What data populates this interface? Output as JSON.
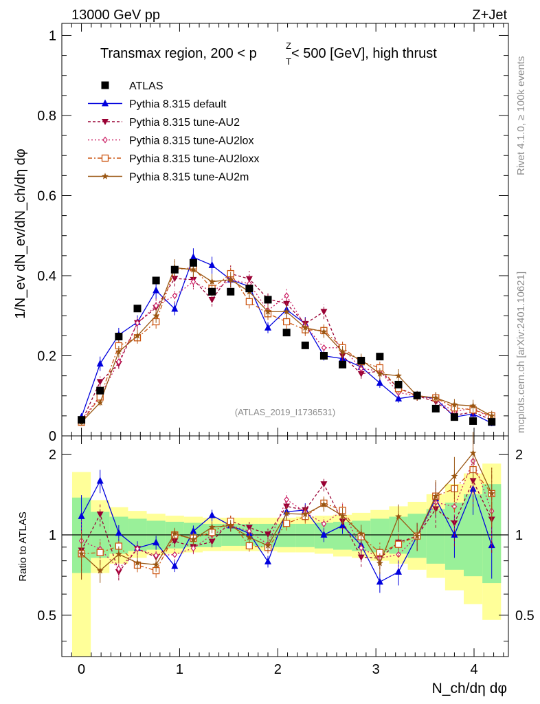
{
  "header": {
    "energy_label": "13000 GeV pp",
    "process_label": "Z+Jet",
    "rivet_label": "Rivet 4.1.0, ≥ 100k events",
    "site_label": "mcplots.cern.ch [arXiv:2401.10621]"
  },
  "chart_data": {
    "type": "line",
    "title_main": "Transmax region, 200 < p",
    "title_sup": "Z",
    "title_sub": "T",
    "title_tail": " < 500 [GeV], high thrust",
    "analysis_id": "(ATLAS_2019_I1736531)",
    "ylabel_main": "1/N_ev dN_ev/dN_ch/dη dφ",
    "ylabel_ratio": "Ratio to ATLAS",
    "xlabel": "N_ch/dη dφ",
    "xlim": [
      -0.2,
      4.35
    ],
    "ylim_main": [
      0,
      1.03
    ],
    "ylim_ratio": [
      0.35,
      2.35
    ],
    "x_ticks": [
      "0",
      "1",
      "2",
      "3",
      "4"
    ],
    "y_ticks_main": [
      "0",
      "0.2",
      "0.4",
      "0.6",
      "0.8",
      "1"
    ],
    "y_ticks_ratio": [
      "0.5",
      "1",
      "2"
    ],
    "x": [
      0.0,
      0.19,
      0.38,
      0.57,
      0.76,
      0.95,
      1.14,
      1.33,
      1.52,
      1.71,
      1.9,
      2.09,
      2.28,
      2.47,
      2.66,
      2.85,
      3.04,
      3.23,
      3.42,
      3.61,
      3.8,
      3.99,
      4.18
    ],
    "data": {
      "name": "ATLAS",
      "values": [
        0.04,
        0.113,
        0.248,
        0.318,
        0.388,
        0.415,
        0.432,
        0.36,
        0.36,
        0.368,
        0.34,
        0.258,
        0.226,
        0.2,
        0.178,
        0.188,
        0.198,
        0.128,
        0.101,
        0.068,
        0.047,
        0.037,
        0.035
      ]
    },
    "band_ratio": {
      "green_lo": [
        0.72,
        0.82,
        0.85,
        0.87,
        0.88,
        0.89,
        0.9,
        0.9,
        0.91,
        0.91,
        0.9,
        0.9,
        0.9,
        0.89,
        0.88,
        0.87,
        0.86,
        0.85,
        0.82,
        0.78,
        0.74,
        0.7,
        0.66
      ],
      "green_hi": [
        1.38,
        1.22,
        1.17,
        1.15,
        1.13,
        1.12,
        1.11,
        1.1,
        1.1,
        1.1,
        1.1,
        1.1,
        1.1,
        1.11,
        1.12,
        1.13,
        1.15,
        1.17,
        1.2,
        1.25,
        1.32,
        1.42,
        1.55
      ],
      "yellow_lo": [
        0.35,
        0.72,
        0.78,
        0.82,
        0.84,
        0.85,
        0.86,
        0.87,
        0.87,
        0.87,
        0.87,
        0.86,
        0.86,
        0.85,
        0.83,
        0.82,
        0.8,
        0.78,
        0.74,
        0.69,
        0.62,
        0.55,
        0.48
      ],
      "yellow_hi": [
        1.72,
        1.35,
        1.27,
        1.23,
        1.2,
        1.18,
        1.17,
        1.16,
        1.16,
        1.16,
        1.16,
        1.16,
        1.17,
        1.18,
        1.19,
        1.21,
        1.24,
        1.28,
        1.33,
        1.42,
        1.55,
        1.7,
        1.85
      ]
    },
    "series": [
      {
        "name": "Pythia 8.315 default",
        "color": "#0000dd",
        "dash": "",
        "marker": "triangle-up",
        "values": [
          0.047,
          0.18,
          0.252,
          0.284,
          0.363,
          0.317,
          0.446,
          0.426,
          0.39,
          0.373,
          0.27,
          0.315,
          0.28,
          0.2,
          0.193,
          0.172,
          0.132,
          0.093,
          0.1,
          0.093,
          0.047,
          0.055,
          0.032
        ]
      },
      {
        "name": "Pythia 8.315 tune-AU2",
        "color": "#990033",
        "dash": "4,3",
        "marker": "triangle-down",
        "values": [
          0.035,
          0.135,
          0.18,
          0.282,
          0.32,
          0.393,
          0.39,
          0.34,
          0.405,
          0.392,
          0.342,
          0.33,
          0.28,
          0.31,
          0.2,
          0.155,
          0.162,
          0.12,
          0.1,
          0.085,
          0.052,
          0.059,
          0.04
        ]
      },
      {
        "name": "Pythia 8.315 tune-AU2lox",
        "color": "#cc2266",
        "dash": "2,3",
        "marker": "diamond",
        "values": [
          0.038,
          0.1,
          0.185,
          0.282,
          0.325,
          0.35,
          0.385,
          0.36,
          0.39,
          0.38,
          0.313,
          0.35,
          0.275,
          0.22,
          0.22,
          0.168,
          0.162,
          0.108,
          0.1,
          0.09,
          0.06,
          0.07,
          0.043
        ]
      },
      {
        "name": "Pythia 8.315 tune-AU2loxx",
        "color": "#cc5511",
        "dash": "6,3,2,3",
        "marker": "square-open",
        "values": [
          0.034,
          0.097,
          0.225,
          0.245,
          0.285,
          0.415,
          0.42,
          0.368,
          0.405,
          0.335,
          0.305,
          0.285,
          0.265,
          0.263,
          0.22,
          0.185,
          0.17,
          0.118,
          0.1,
          0.095,
          0.07,
          0.065,
          0.05
        ]
      },
      {
        "name": "Pythia 8.315 tune-AU2m",
        "color": "#995511",
        "dash": "",
        "marker": "star",
        "values": [
          0.034,
          0.083,
          0.21,
          0.25,
          0.3,
          0.42,
          0.415,
          0.385,
          0.39,
          0.36,
          0.31,
          0.31,
          0.27,
          0.26,
          0.21,
          0.19,
          0.155,
          0.15,
          0.1,
          0.095,
          0.078,
          0.075,
          0.05
        ]
      }
    ]
  }
}
